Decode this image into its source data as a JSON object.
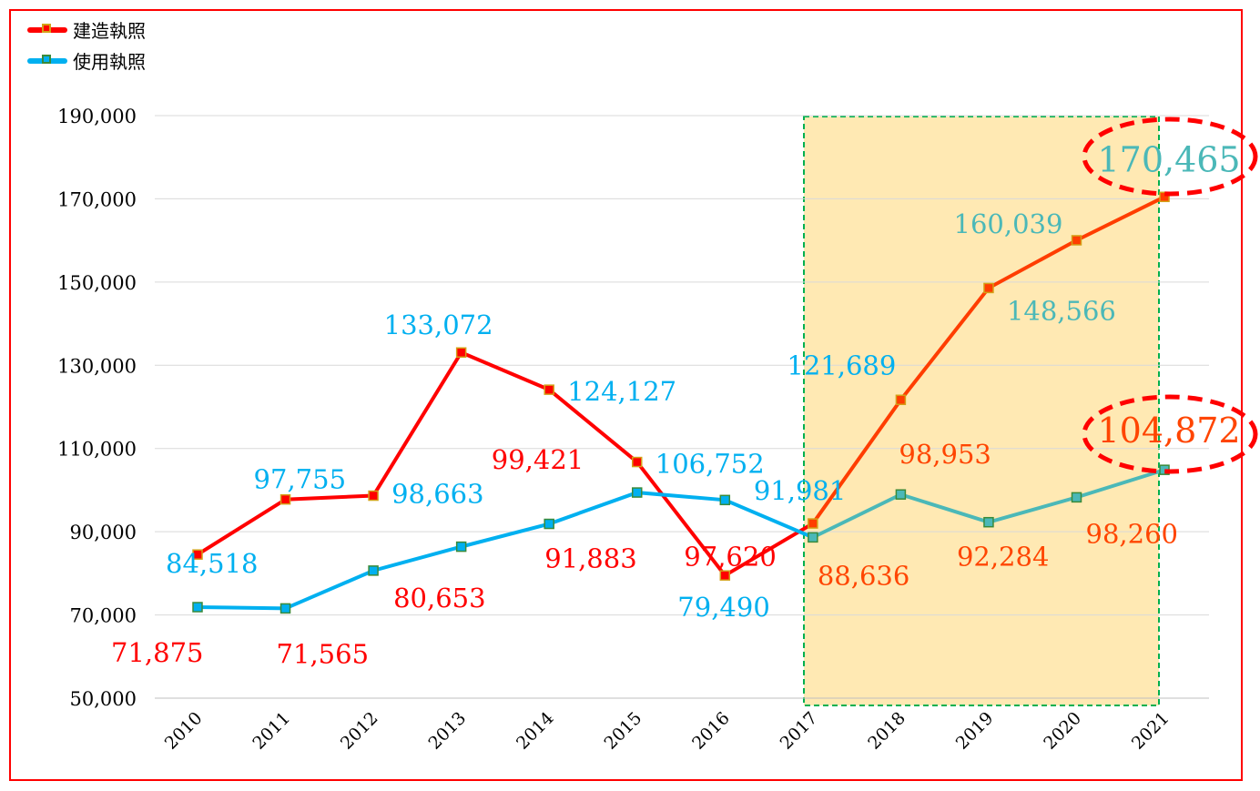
{
  "chart_data": {
    "type": "line",
    "title": "",
    "xlabel": "",
    "ylabel": "",
    "categories": [
      "2010",
      "2011",
      "2012",
      "2013",
      "2014",
      "2015",
      "2016",
      "2017",
      "2018",
      "2019",
      "2020",
      "2021"
    ],
    "ylim": [
      50000,
      190000
    ],
    "yticks": [
      50000,
      70000,
      90000,
      110000,
      130000,
      150000,
      170000,
      190000
    ],
    "ytick_labels": [
      "50,000",
      "70,000",
      "90,000",
      "110,000",
      "130,000",
      "150,000",
      "170,000",
      "190,000"
    ],
    "grid": true,
    "legend_position": "top-left",
    "series": [
      {
        "name": "建造執照",
        "color": "#ff0000",
        "highlight_color": "#ff3d00",
        "values": [
          84518,
          97755,
          98663,
          133072,
          124127,
          106752,
          79490,
          91981,
          121689,
          148566,
          160039,
          170465
        ],
        "labels": [
          "84,518",
          "97,755",
          "98,663",
          "133,072",
          "124,127",
          "106,752",
          "79,490",
          "91,981",
          "121,689",
          "148,566",
          "160,039",
          "170,465"
        ]
      },
      {
        "name": "使用執照",
        "color": "#00b0f0",
        "highlight_color": "#4bb8b8",
        "values": [
          71875,
          71565,
          80653,
          86400,
          91883,
          99421,
          97620,
          88636,
          98953,
          92284,
          98260,
          104872
        ],
        "labels": [
          "71,875",
          "71,565",
          "80,653",
          "",
          "91,883",
          "99,421",
          "97,620",
          "88,636",
          "98,953",
          "92,284",
          "98,260",
          "104,872"
        ]
      }
    ],
    "highlight_range": [
      "2017",
      "2021"
    ],
    "highlight_color": "#ffe9b3",
    "highlight_border": "#00b050",
    "circled_labels": [
      "170,465",
      "104,872"
    ]
  }
}
